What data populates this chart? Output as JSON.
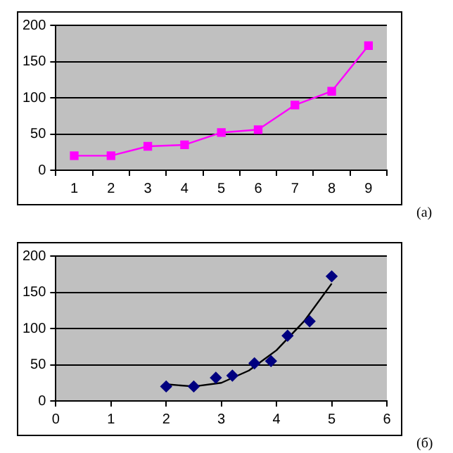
{
  "chart_data": [
    {
      "type": "line",
      "annotations": [
        "(a)"
      ],
      "categories": [
        "1",
        "2",
        "3",
        "4",
        "5",
        "6",
        "7",
        "8",
        "9"
      ],
      "series": [
        {
          "color": "#ff00ff",
          "values": [
            20,
            20,
            33,
            35,
            52,
            56,
            90,
            109,
            172
          ]
        }
      ],
      "ylim": [
        0,
        200
      ],
      "yticks": [
        0,
        50,
        100,
        150,
        200
      ],
      "grid": "y",
      "legend": false,
      "marker": "square"
    },
    {
      "type": "scatter",
      "annotations": [
        "(б)"
      ],
      "series": [
        {
          "color": "#000080",
          "x": [
            2,
            2.5,
            2.9,
            3.2,
            3.6,
            3.9,
            4.2,
            4.6,
            5
          ],
          "values": [
            20,
            20,
            32,
            35,
            52,
            55,
            90,
            110,
            172
          ]
        },
        {
          "type": "line",
          "color": "#000000",
          "marker": "none",
          "x": [
            2,
            2.5,
            3,
            3.5,
            4,
            4.5,
            5
          ],
          "values": [
            23,
            20,
            25,
            42,
            70,
            110,
            162
          ]
        }
      ],
      "xlim": [
        0,
        6
      ],
      "xticks": [
        0,
        1,
        2,
        3,
        4,
        5,
        6
      ],
      "ylim": [
        0,
        200
      ],
      "yticks": [
        0,
        50,
        100,
        150,
        200
      ],
      "grid": "y",
      "legend": false,
      "marker": "diamond"
    }
  ]
}
